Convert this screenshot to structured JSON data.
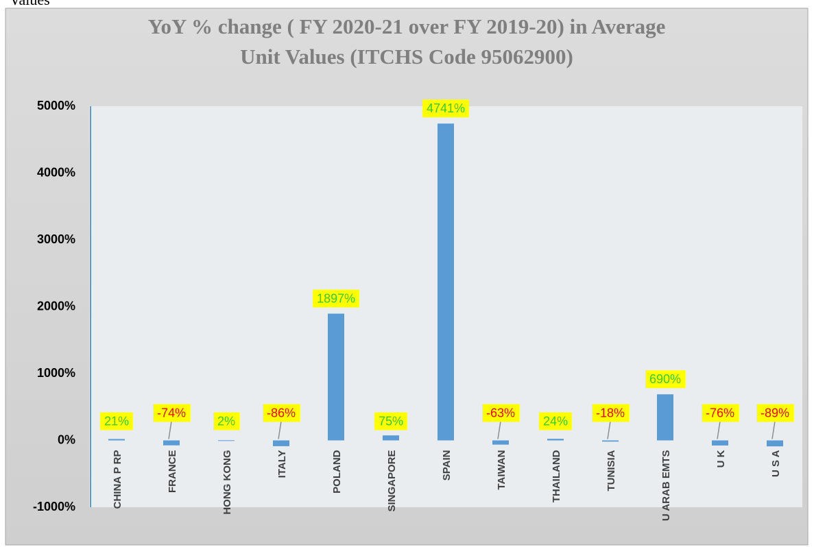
{
  "header_text": "Values",
  "chart_data": {
    "type": "bar",
    "title": [
      "YoY % change ( FY 2020-21 over FY 2019-20) in Average",
      "Unit Values (ITCHS Code 95062900)"
    ],
    "categories": [
      "CHINA P RP",
      "FRANCE",
      "HONG KONG",
      "ITALY",
      "POLAND",
      "SINGAPORE",
      "SPAIN",
      "TAIWAN",
      "THAILAND",
      "TUNISIA",
      "U ARAB EMTS",
      "U K",
      "U S A"
    ],
    "values": [
      21,
      -74,
      2,
      -86,
      1897,
      75,
      4741,
      -63,
      24,
      -18,
      690,
      -76,
      -89
    ],
    "value_labels": [
      "21%",
      "-74%",
      "2%",
      "-86%",
      "1897%",
      "75%",
      "4741%",
      "-63%",
      "24%",
      "-18%",
      "690%",
      "-76%",
      "-89%"
    ],
    "color": "#5b9bd5",
    "label_colors": {
      "positive": "#33cc33",
      "negative": "#ff0000"
    },
    "ylim": [
      -1000,
      5000
    ],
    "yticks": [
      {
        "value": -1000,
        "label": "-1000%"
      },
      {
        "value": 0,
        "label": "0%"
      },
      {
        "value": 1000,
        "label": "1000%"
      },
      {
        "value": 2000,
        "label": "2000%"
      },
      {
        "value": 3000,
        "label": "3000%"
      },
      {
        "value": 4000,
        "label": "4000%"
      },
      {
        "value": 5000,
        "label": "5000%"
      }
    ],
    "grid": false
  }
}
